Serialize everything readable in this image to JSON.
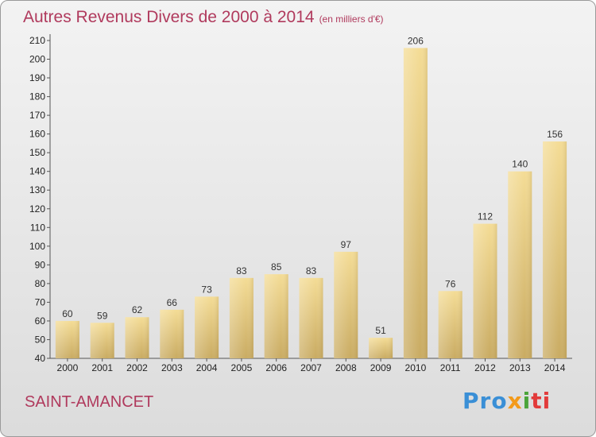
{
  "title": "Autres Revenus Divers de 2000 à 2014",
  "title_unit": "(en milliers d'€)",
  "commune": "SAINT-AMANCET",
  "logo": {
    "parts": [
      "Pro",
      "x",
      "i",
      "ti"
    ],
    "colors": [
      "#3a8fd6",
      "#f39a1a",
      "#4aa43a",
      "#e23b3b"
    ]
  },
  "colors": {
    "title": "#b03a5d",
    "bar_light": "#f4dc95",
    "bar_dark": "#c9ab62"
  },
  "chart_data": {
    "type": "bar",
    "title": "Autres Revenus Divers de 2000 à 2014",
    "categories": [
      "2000",
      "2001",
      "2002",
      "2003",
      "2004",
      "2005",
      "2006",
      "2007",
      "2008",
      "2009",
      "2010",
      "2011",
      "2012",
      "2013",
      "2014"
    ],
    "values": [
      60,
      59,
      62,
      66,
      73,
      83,
      85,
      83,
      97,
      51,
      206,
      76,
      112,
      140,
      156
    ],
    "ylim": [
      40,
      210
    ],
    "yticks": [
      40,
      50,
      60,
      70,
      80,
      90,
      100,
      110,
      120,
      130,
      140,
      150,
      160,
      170,
      180,
      190,
      200,
      210
    ],
    "grid": false,
    "data_labels": true
  }
}
